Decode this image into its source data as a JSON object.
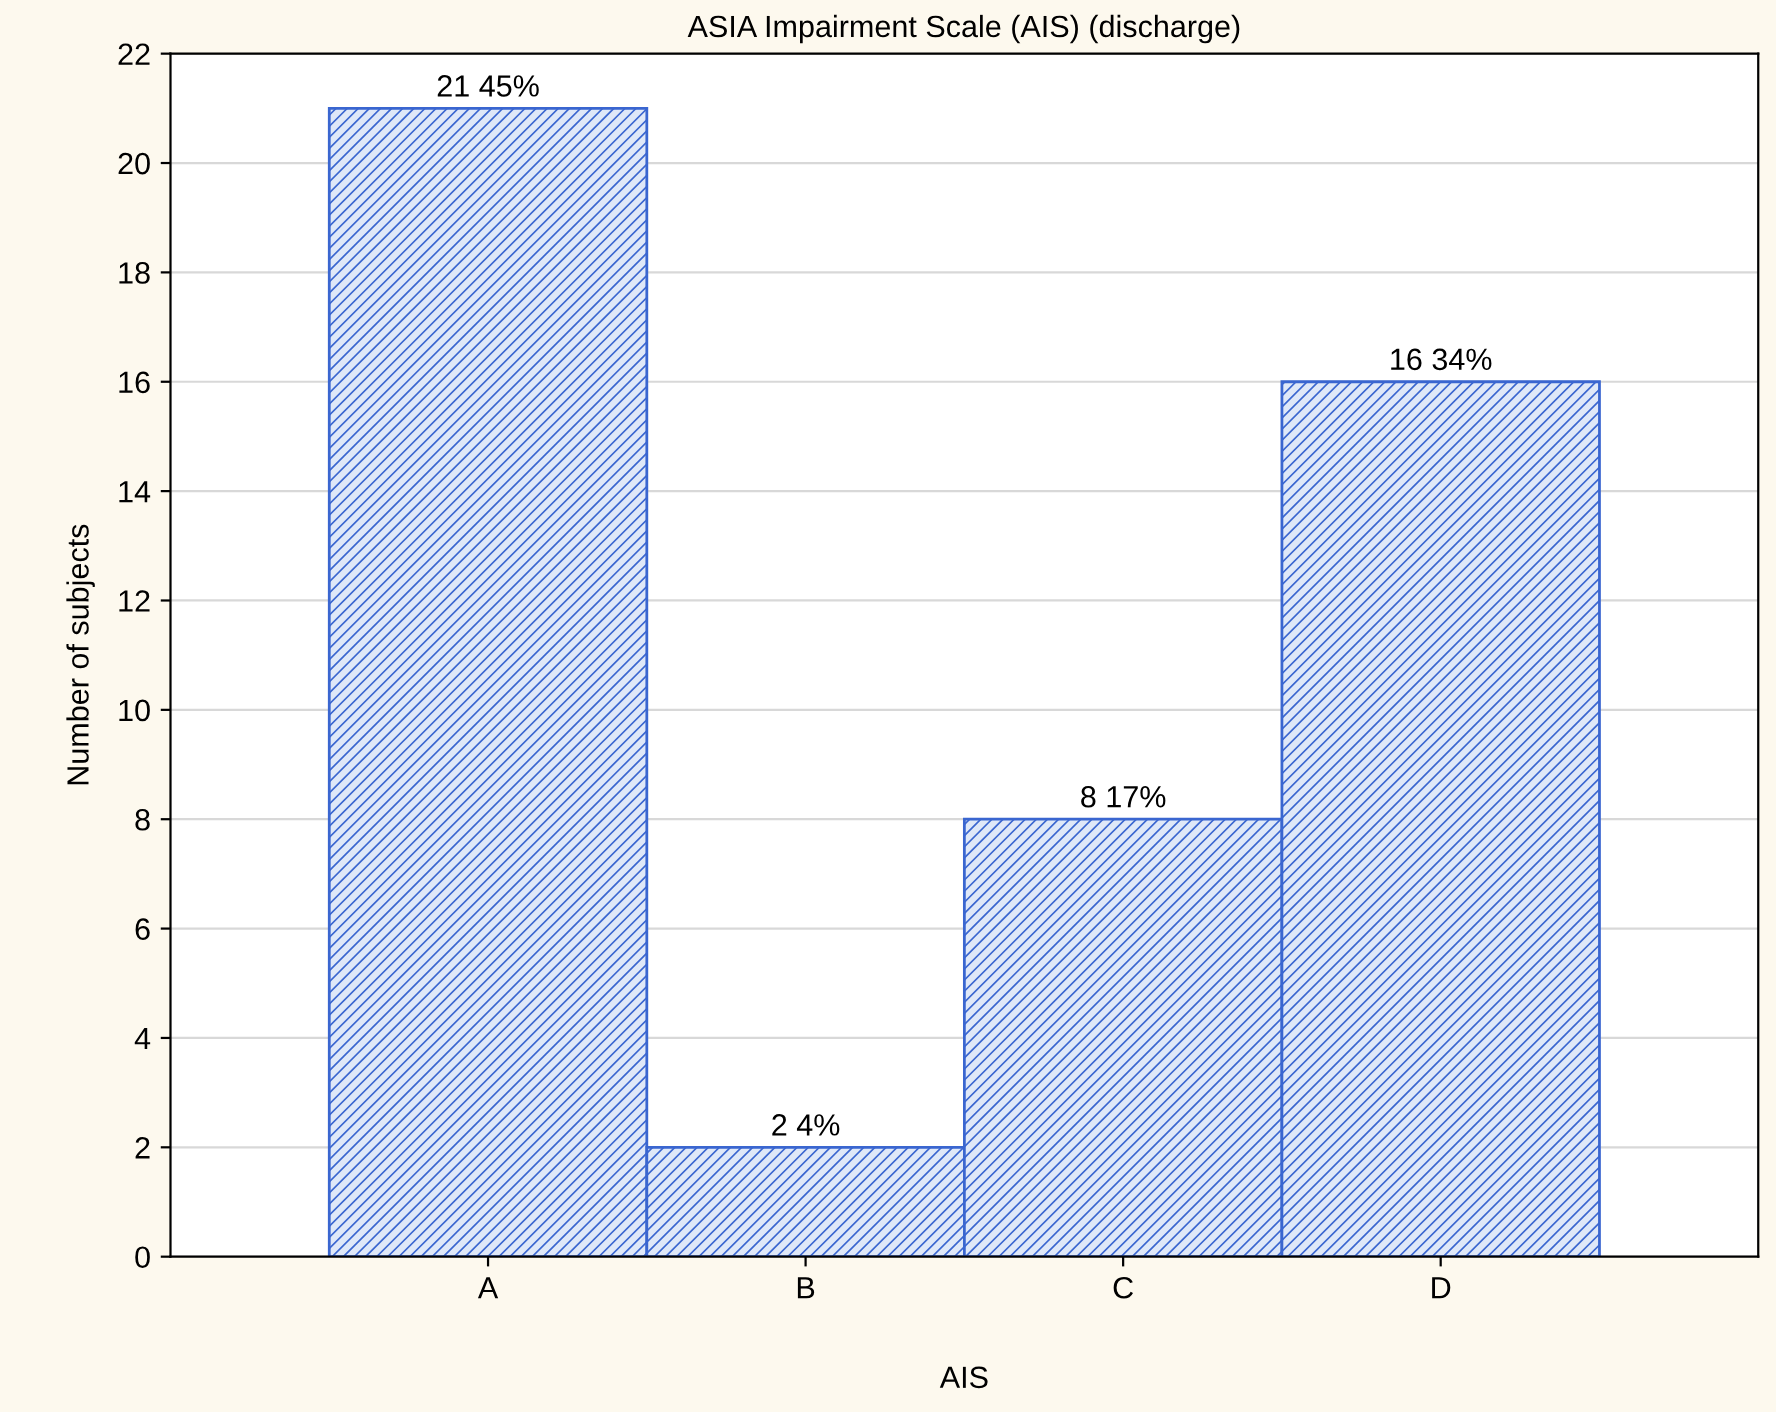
{
  "chart_data": {
    "type": "bar",
    "title": "ASIA Impairment Scale (AIS) (discharge)",
    "xlabel": "AIS",
    "ylabel": "Number of subjects",
    "categories": [
      "A",
      "B",
      "C",
      "D"
    ],
    "values": [
      21,
      2,
      8,
      16
    ],
    "value_labels": [
      "21 45%",
      "2 4%",
      "8 17%",
      "16 34%"
    ],
    "color": "#3a66d0",
    "ylim": [
      0,
      22
    ],
    "yticks": [
      0,
      2,
      4,
      6,
      8,
      10,
      12,
      14,
      16,
      18,
      20,
      22
    ],
    "grid": "y"
  }
}
